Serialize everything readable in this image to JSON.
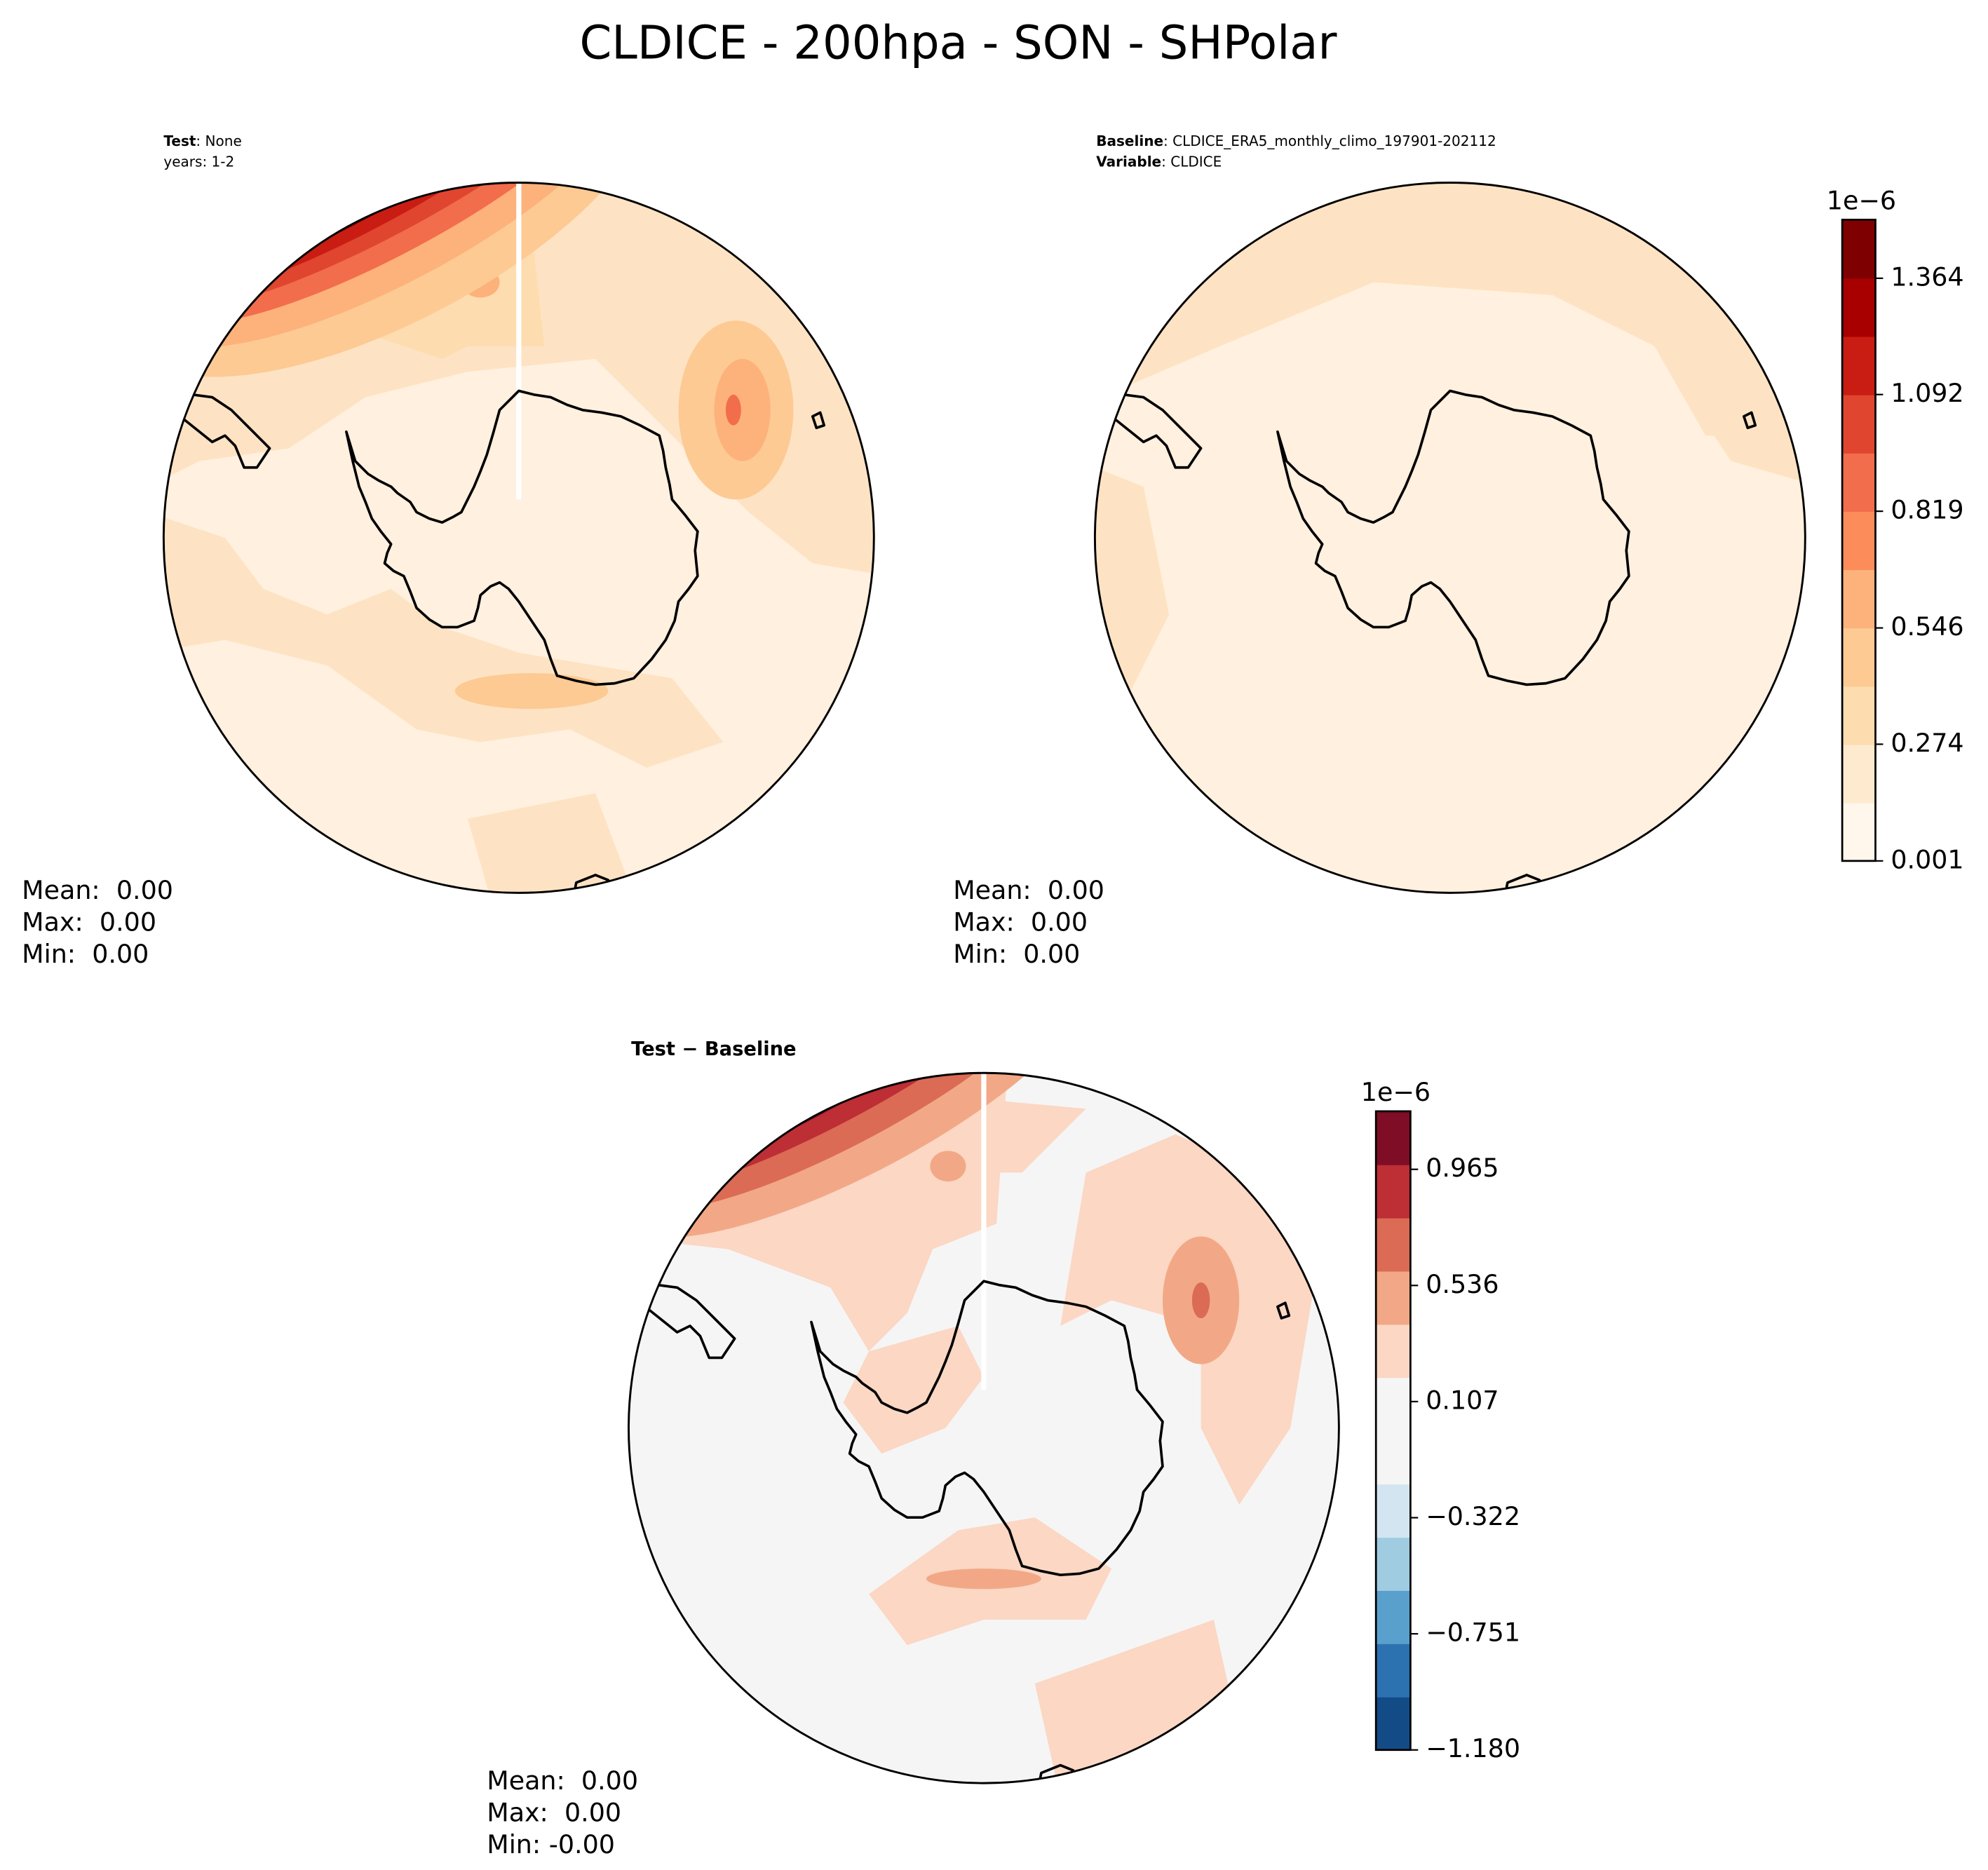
{
  "title": "CLDICE - 200hpa - SON - SHPolar",
  "panels": [
    {
      "header": [
        {
          "key": "Test",
          "value": ": None"
        },
        {
          "value": "years: 1-2"
        }
      ],
      "stats": [
        "Mean:  0.00",
        "Max:  0.00",
        "Min:  0.00"
      ]
    },
    {
      "header": [
        {
          "key": "Baseline",
          "value": ": CLDICE_ERA5_monthly_climo_197901-202112"
        },
        {
          "key": "Variable",
          "value": ": CLDICE"
        }
      ],
      "stats": [
        "Mean:  0.00",
        "Max:  0.00",
        "Min:  0.00"
      ],
      "colorbar": {
        "offset_label": "1e−6",
        "lim": [
          0.001,
          1.501
        ],
        "ticks": [
          0.001,
          0.274,
          0.546,
          0.819,
          1.092,
          1.364
        ],
        "colors": [
          "#fff7ec",
          "#feebcf",
          "#fddcaf",
          "#fdca94",
          "#fdb27b",
          "#fc8c59",
          "#f26d4b",
          "#e0452f",
          "#c91d13",
          "#a80000",
          "#7f0000"
        ]
      }
    },
    {
      "title": "Test − Baseline",
      "stats": [
        "Mean:  0.00",
        "Max:  0.00",
        "Min: -0.00"
      ],
      "colorbar": {
        "offset_label": "1e−6",
        "lim": [
          -1.18,
          1.1795
        ],
        "ticks": [
          {
            "value": -1.18,
            "label": "−1.180"
          },
          {
            "value": -0.751,
            "label": "−0.751"
          },
          {
            "value": -0.322,
            "label": "−0.322"
          },
          0.107,
          0.536,
          0.965
        ],
        "colors": [
          "#134b87",
          "#2c71b0",
          "#5aa0cc",
          "#a0cce2",
          "#d3e5f0",
          "#f5f5f5",
          "#f5f5f5",
          "#fbd7c4",
          "#f2a886",
          "#db6b55",
          "#bd2e35",
          "#7e0d25"
        ]
      }
    }
  ]
}
